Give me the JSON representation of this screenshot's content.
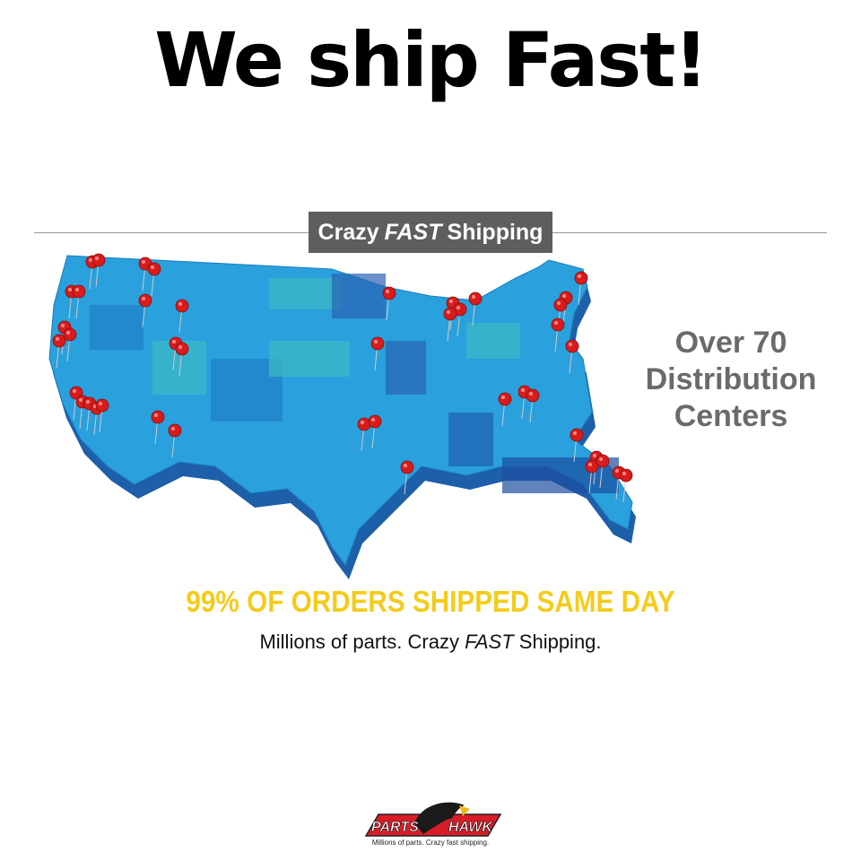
{
  "headline": "We ship Fast!",
  "badge": {
    "prefix": "Crazy",
    "emphasis": "FAST",
    "suffix": "Shipping"
  },
  "centers": [
    "Over 70",
    "Distribution",
    "Centers"
  ],
  "same_day": "99% OF ORDERS SHIPPED SAME DAY",
  "tagline": {
    "prefix": "Millions of parts. Crazy ",
    "emphasis": "FAST",
    "suffix": " Shipping."
  },
  "logo": {
    "left": "PARTS",
    "right": "HAWK",
    "sub": "Millions of parts. Crazy fast shipping."
  },
  "colors": {
    "map": "#2aa0dc",
    "map_dark": "#1d5fa8",
    "pin": "#d81c1c",
    "badge": "#5e5e5e",
    "yellow": "#f3cc1c",
    "logo_red": "#d71e28"
  }
}
